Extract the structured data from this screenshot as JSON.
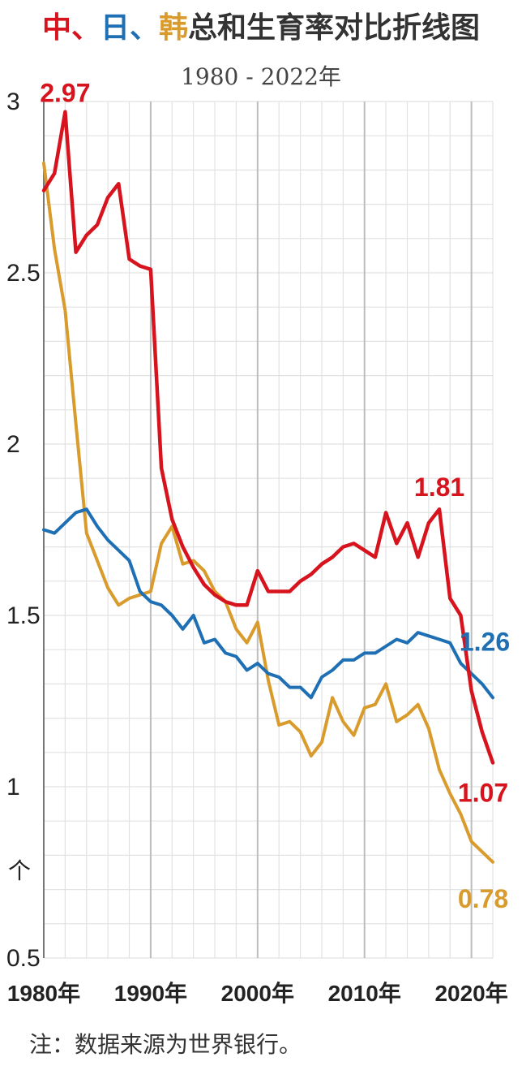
{
  "chart_data": {
    "type": "line",
    "title_parts": [
      {
        "text": "中",
        "color": "#d7141e"
      },
      {
        "text": "、",
        "color": "#d7141e"
      },
      {
        "text": "日",
        "color": "#1f6fb4"
      },
      {
        "text": "、",
        "color": "#1f6fb4"
      },
      {
        "text": "韩",
        "color": "#d89b2c"
      },
      {
        "text": "总和生育率对比折线图",
        "color": "#333333"
      }
    ],
    "subtitle": "1980 - 2022年",
    "ylabel": "个",
    "ylim": [
      0.5,
      3
    ],
    "xlim": [
      1980,
      2022
    ],
    "y_ticks": [
      "0.5",
      "1",
      "1.5",
      "2",
      "2.5",
      "3"
    ],
    "x_ticks": [
      {
        "value": 1980,
        "label": "1980年"
      },
      {
        "value": 1990,
        "label": "1990年"
      },
      {
        "value": 2000,
        "label": "2000年"
      },
      {
        "value": 2010,
        "label": "2010年"
      },
      {
        "value": 2020,
        "label": "2020年"
      }
    ],
    "note": "注：数据来源为世界银行。",
    "series": [
      {
        "key": "china",
        "color": "#d7141e",
        "x": [
          1980,
          1981,
          1982,
          1983,
          1984,
          1985,
          1986,
          1987,
          1988,
          1989,
          1990,
          1991,
          1992,
          1993,
          1994,
          1995,
          1996,
          1997,
          1998,
          1999,
          2000,
          2001,
          2002,
          2003,
          2004,
          2005,
          2006,
          2007,
          2008,
          2009,
          2010,
          2011,
          2012,
          2013,
          2014,
          2015,
          2016,
          2017,
          2018,
          2019,
          2020,
          2021,
          2022
        ],
        "values": [
          2.74,
          2.79,
          2.97,
          2.56,
          2.61,
          2.64,
          2.72,
          2.76,
          2.54,
          2.52,
          2.51,
          1.93,
          1.78,
          1.7,
          1.64,
          1.59,
          1.56,
          1.54,
          1.53,
          1.53,
          1.63,
          1.57,
          1.57,
          1.57,
          1.6,
          1.62,
          1.65,
          1.67,
          1.7,
          1.71,
          1.69,
          1.67,
          1.8,
          1.71,
          1.77,
          1.67,
          1.77,
          1.81,
          1.55,
          1.5,
          1.28,
          1.16,
          1.07
        ]
      },
      {
        "key": "japan",
        "color": "#1f6fb4",
        "x": [
          1980,
          1981,
          1982,
          1983,
          1984,
          1985,
          1986,
          1987,
          1988,
          1989,
          1990,
          1991,
          1992,
          1993,
          1994,
          1995,
          1996,
          1997,
          1998,
          1999,
          2000,
          2001,
          2002,
          2003,
          2004,
          2005,
          2006,
          2007,
          2008,
          2009,
          2010,
          2011,
          2012,
          2013,
          2014,
          2015,
          2016,
          2017,
          2018,
          2019,
          2020,
          2021,
          2022
        ],
        "values": [
          1.75,
          1.74,
          1.77,
          1.8,
          1.81,
          1.76,
          1.72,
          1.69,
          1.66,
          1.57,
          1.54,
          1.53,
          1.5,
          1.46,
          1.5,
          1.42,
          1.43,
          1.39,
          1.38,
          1.34,
          1.36,
          1.33,
          1.32,
          1.29,
          1.29,
          1.26,
          1.32,
          1.34,
          1.37,
          1.37,
          1.39,
          1.39,
          1.41,
          1.43,
          1.42,
          1.45,
          1.44,
          1.43,
          1.42,
          1.36,
          1.33,
          1.3,
          1.26
        ]
      },
      {
        "key": "korea",
        "color": "#d89b2c",
        "x": [
          1980,
          1981,
          1982,
          1983,
          1984,
          1985,
          1986,
          1987,
          1988,
          1989,
          1990,
          1991,
          1992,
          1993,
          1994,
          1995,
          1996,
          1997,
          1998,
          1999,
          2000,
          2001,
          2002,
          2003,
          2004,
          2005,
          2006,
          2007,
          2008,
          2009,
          2010,
          2011,
          2012,
          2013,
          2014,
          2015,
          2016,
          2017,
          2018,
          2019,
          2020,
          2021,
          2022
        ],
        "values": [
          2.82,
          2.57,
          2.39,
          2.06,
          1.74,
          1.66,
          1.58,
          1.53,
          1.55,
          1.56,
          1.57,
          1.71,
          1.76,
          1.65,
          1.66,
          1.63,
          1.57,
          1.54,
          1.46,
          1.42,
          1.48,
          1.31,
          1.18,
          1.19,
          1.16,
          1.09,
          1.13,
          1.26,
          1.19,
          1.15,
          1.23,
          1.24,
          1.3,
          1.19,
          1.21,
          1.24,
          1.17,
          1.05,
          0.98,
          0.92,
          0.84,
          0.81,
          0.78
        ]
      }
    ],
    "annotations": [
      {
        "text": "2.97",
        "color": "#d7141e",
        "x": 1982,
        "y": 2.97
      },
      {
        "text": "1.81",
        "color": "#d7141e",
        "x": 2017,
        "y": 1.81
      },
      {
        "text": "1.26",
        "color": "#1f6fb4",
        "x": 2022,
        "y": 1.26
      },
      {
        "text": "1.07",
        "color": "#d7141e",
        "x": 2022,
        "y": 1.07
      },
      {
        "text": "0.78",
        "color": "#d89b2c",
        "x": 2022,
        "y": 0.78
      }
    ]
  }
}
